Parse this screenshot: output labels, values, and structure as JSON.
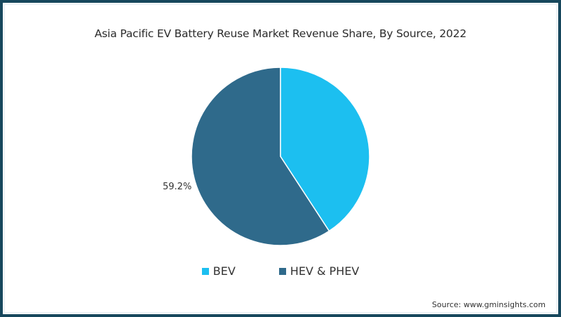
{
  "title": "Asia Pacific EV Battery Reuse Market Revenue Share, By Source, 2022",
  "source": "Source: www.gminsights.com",
  "colors": {
    "frame": "#17475c",
    "BEV": "#1cbff0",
    "HEV & PHEV": "#2f6a8b"
  },
  "labels": {
    "hev_phev_pct": "59.2%"
  },
  "legend": [
    {
      "label": "BEV",
      "color": "#1cbff0"
    },
    {
      "label": "HEV & PHEV",
      "color": "#2f6a8b"
    }
  ],
  "chart_data": {
    "type": "pie",
    "title": "Asia Pacific EV Battery Reuse Market Revenue Share, By Source, 2022",
    "categories": [
      "BEV",
      "HEV & PHEV"
    ],
    "values": [
      40.8,
      59.2
    ],
    "units": "%",
    "data_labels": [
      null,
      "59.2%"
    ],
    "start_angle": "12 o'clock, clockwise",
    "legend_position": "bottom",
    "colors": [
      "#1cbff0",
      "#2f6a8b"
    ],
    "source": "www.gminsights.com"
  }
}
